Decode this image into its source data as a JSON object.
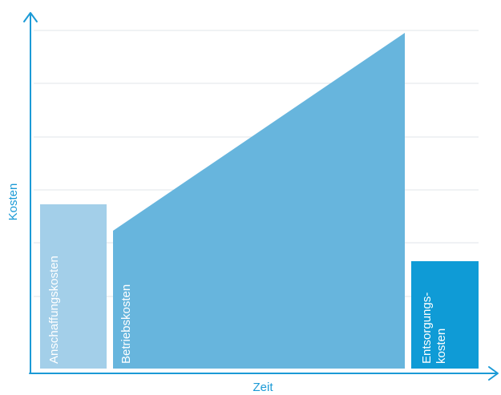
{
  "axes": {
    "x_label": "Zeit",
    "y_label": "Kosten"
  },
  "blocks": {
    "acquisition": {
      "label": "Anschaffungskosten",
      "color": "#a3cfe9"
    },
    "operating": {
      "label": "Betriebskosten",
      "color": "#67b5dd"
    },
    "disposal": {
      "line1": "Entsorgungs-",
      "line2": "kosten",
      "color": "#0f9bd6"
    }
  },
  "colors": {
    "axis": "#1b9ad6",
    "grid": "#e2e6ea",
    "text_light": "#ffffff"
  }
}
